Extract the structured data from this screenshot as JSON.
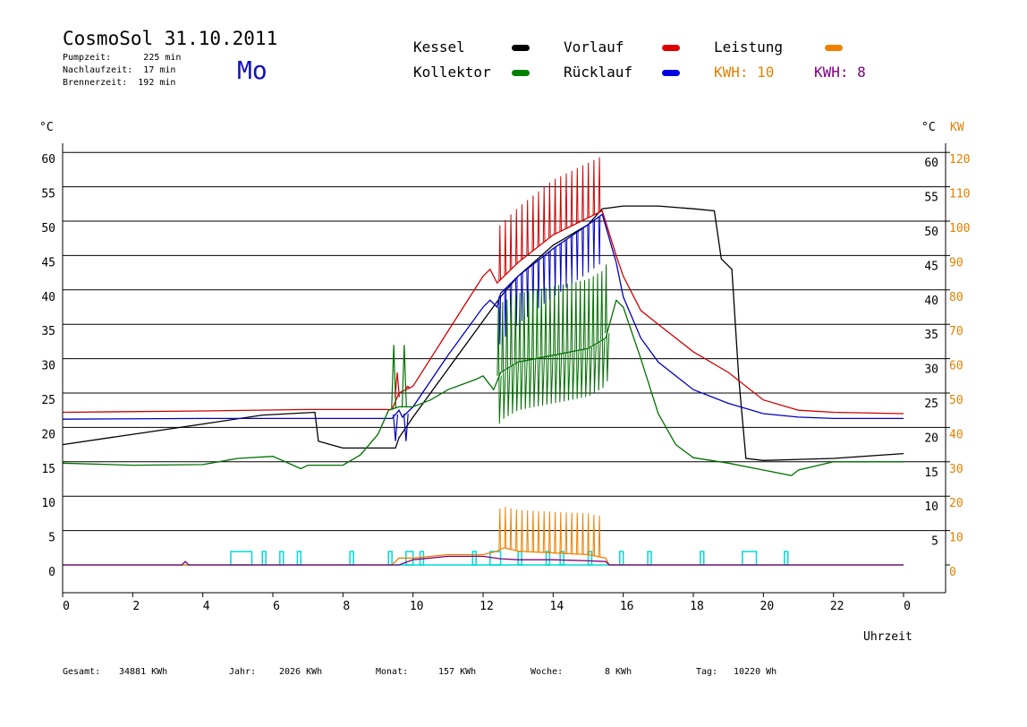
{
  "header": {
    "title": "CosmoSol 31.10.2011",
    "info_lines": [
      "Pumpzeit:      225 min",
      "Nachlaufzeit:  17 min",
      "Brennerzeit:  192 min"
    ],
    "weekday": "Mo"
  },
  "legend": {
    "items": [
      {
        "label": "Kessel",
        "color": "#000000"
      },
      {
        "label": "Vorlauf",
        "color": "#e00000"
      },
      {
        "label": "Leistung",
        "color": "#f08000"
      },
      {
        "label": "Kollektor",
        "color": "#008000"
      },
      {
        "label": "Rücklauf",
        "color": "#0000e0"
      }
    ],
    "kwh": [
      {
        "label": "KWH: 10",
        "color": "#e08000"
      },
      {
        "label": "KWH: 8",
        "color": "#800080"
      }
    ]
  },
  "axes": {
    "left_unit": "°C",
    "right_unit_c": "°C",
    "right_unit_kw": "KW",
    "x_title": "Uhrzeit"
  },
  "footer": {
    "items": [
      {
        "label": "Gesamt:",
        "value": "34881 KWh"
      },
      {
        "label": "Jahr:",
        "value": "2026 KWh"
      },
      {
        "label": "Monat:",
        "value": "157 KWh"
      },
      {
        "label": "Woche:",
        "value": "8 KWh"
      },
      {
        "label": "Tag:",
        "value": "10220 Wh"
      }
    ]
  },
  "colors": {
    "kessel": "#000000",
    "vorlauf": "#d00000",
    "ruecklauf": "#0000c0",
    "kollektor": "#007000",
    "leistung": "#f08000",
    "kwh2": "#800080",
    "pump": "#00d8d8",
    "kw_axis": "#e08000"
  },
  "chart_data": {
    "type": "line",
    "x_ticks": [
      "0",
      "2",
      "4",
      "6",
      "8",
      "10",
      "12",
      "14",
      "16",
      "18",
      "20",
      "22",
      "0"
    ],
    "xlim": [
      0,
      24
    ],
    "y_left_ticks": [
      0,
      5,
      10,
      15,
      20,
      25,
      30,
      35,
      40,
      45,
      50,
      55,
      60
    ],
    "y_right_ticks_c": [
      5,
      10,
      15,
      20,
      25,
      30,
      35,
      40,
      45,
      50,
      55,
      60
    ],
    "y_right_ticks_kw": [
      0,
      10,
      20,
      30,
      40,
      50,
      60,
      70,
      80,
      90,
      100,
      110,
      120
    ],
    "ylim": [
      -4,
      64
    ],
    "ylim_kw": [
      0,
      120
    ],
    "grid": "horizontal",
    "series": [
      {
        "name": "Kessel",
        "key": "kessel",
        "x": [
          0,
          2,
          4,
          5.7,
          7.2,
          7.3,
          8.0,
          9.5,
          9.6,
          10.0,
          11.0,
          12.0,
          12.5,
          13.0,
          14.0,
          15.0,
          15.4,
          16.0,
          17.0,
          18.0,
          18.6,
          18.8,
          19.1,
          19.3,
          19.5,
          20.0,
          22.0,
          24.0
        ],
        "y": [
          17.5,
          19.0,
          20.5,
          21.8,
          22.2,
          18.0,
          17.0,
          17.0,
          18.5,
          21.5,
          28.5,
          35.5,
          39.0,
          42.0,
          46.5,
          49.5,
          51.8,
          52.2,
          52.2,
          51.8,
          51.5,
          44.5,
          43.0,
          27.0,
          15.5,
          15.2,
          15.5,
          16.2
        ]
      },
      {
        "name": "Vorlauf",
        "key": "vorlauf",
        "x": [
          0,
          4,
          7,
          9.4,
          9.6,
          10.0,
          11.0,
          12.0,
          12.2,
          12.4,
          13.0,
          14.0,
          15.0,
          15.4,
          15.8,
          16.0,
          16.5,
          17.0,
          18.0,
          19.0,
          20.0,
          21.0,
          22.0,
          24.0
        ],
        "y": [
          22.2,
          22.4,
          22.6,
          22.6,
          25.0,
          26.0,
          34.0,
          42.0,
          43.0,
          41.0,
          44.0,
          48.0,
          50.5,
          51.5,
          45.0,
          42.0,
          37.0,
          35.0,
          31.0,
          28.0,
          24.0,
          22.5,
          22.2,
          22.0
        ]
      },
      {
        "name": "Rücklauf",
        "key": "ruecklauf",
        "x": [
          0,
          4,
          7,
          9.4,
          9.6,
          9.7,
          10.0,
          11.0,
          12.0,
          12.2,
          12.4,
          12.5,
          13.0,
          14.0,
          15.0,
          15.4,
          15.8,
          16.0,
          16.5,
          17.0,
          18.0,
          19.0,
          20.0,
          21.0,
          22.0,
          24.0
        ],
        "y": [
          21.2,
          21.3,
          21.3,
          21.3,
          22.5,
          21.5,
          23.0,
          30.5,
          37.5,
          38.5,
          37.5,
          39.5,
          42.0,
          46.0,
          49.5,
          51.0,
          44.0,
          39.0,
          33.0,
          29.5,
          25.5,
          23.5,
          22.0,
          21.5,
          21.3,
          21.3
        ]
      },
      {
        "name": "Kollektor",
        "key": "kollektor",
        "x": [
          0,
          2,
          4,
          5.0,
          6.0,
          6.8,
          7.0,
          8.0,
          8.5,
          9.0,
          9.3,
          9.6,
          10.0,
          10.5,
          11.0,
          11.8,
          12.0,
          12.3,
          12.5,
          13.0,
          14.0,
          15.0,
          15.5,
          15.8,
          16.0,
          16.5,
          17.0,
          17.5,
          18.0,
          19.0,
          20.0,
          20.8,
          21.0,
          22.0,
          24.0
        ],
        "y": [
          14.8,
          14.5,
          14.6,
          15.5,
          15.8,
          14.0,
          14.5,
          14.5,
          16.0,
          19.0,
          22.5,
          23.0,
          23.0,
          24.0,
          25.5,
          27.0,
          27.5,
          25.5,
          28.0,
          29.5,
          30.5,
          31.5,
          33.0,
          38.5,
          37.5,
          30.0,
          22.0,
          17.5,
          15.6,
          14.8,
          13.8,
          13.0,
          13.8,
          15.0,
          15.0
        ]
      },
      {
        "name": "Leistung",
        "key": "leistung",
        "x": [
          0,
          9.4,
          9.6,
          10.0,
          11.0,
          12.0,
          12.4,
          12.6,
          13.0,
          14.0,
          15.0,
          15.5,
          15.6,
          24.0
        ],
        "y_kw": [
          0,
          0,
          2,
          2,
          3,
          3,
          4,
          5,
          4,
          3.5,
          3,
          2,
          0,
          0
        ]
      },
      {
        "name": "KWH: 8",
        "key": "kwh2",
        "x": [
          0,
          3.4,
          3.5,
          3.6,
          9.6,
          10.0,
          11.0,
          12.0,
          12.5,
          13.0,
          14.0,
          15.0,
          15.5,
          15.6,
          24.0
        ],
        "y_kw": [
          0,
          0,
          1,
          0,
          0,
          1.5,
          2.5,
          2.5,
          1.8,
          1.5,
          1.5,
          1.2,
          1.0,
          0,
          0
        ]
      }
    ],
    "oscillations": [
      {
        "key": "vorlauf",
        "x_from": 12.4,
        "x_to": 15.4,
        "count": 19,
        "amp": [
          6,
          8
        ]
      },
      {
        "key": "ruecklauf",
        "x_from": 12.4,
        "x_to": 15.4,
        "count": 19,
        "amp": [
          -7,
          -4
        ]
      },
      {
        "key": "kollektor",
        "x_from": 12.4,
        "x_to": 15.6,
        "count": 26,
        "amp": [
          -7,
          10
        ]
      },
      {
        "key": "leistung",
        "x_from": 12.4,
        "x_to": 15.4,
        "count": 19,
        "amp": [
          0,
          12
        ]
      }
    ],
    "pump_on_intervals": [
      [
        4.8,
        5.4
      ],
      [
        5.7,
        5.8
      ],
      [
        6.2,
        6.3
      ],
      [
        6.7,
        6.8
      ],
      [
        8.2,
        8.3
      ],
      [
        9.3,
        9.4
      ],
      [
        9.8,
        10.0
      ],
      [
        10.2,
        10.3
      ],
      [
        11.7,
        11.8
      ],
      [
        12.2,
        12.5
      ],
      [
        13.0,
        13.1
      ],
      [
        13.8,
        13.9
      ],
      [
        14.2,
        14.3
      ],
      [
        15.0,
        15.1
      ],
      [
        15.9,
        16.0
      ],
      [
        16.7,
        16.8
      ],
      [
        18.2,
        18.3
      ],
      [
        19.4,
        19.8
      ],
      [
        20.6,
        20.7
      ]
    ],
    "spikes_morning": [
      {
        "key": "kollektor",
        "x": 9.45,
        "y": 32
      },
      {
        "key": "kollektor",
        "x": 9.75,
        "y": 32
      },
      {
        "key": "ruecklauf",
        "x": 9.5,
        "y": 18
      },
      {
        "key": "ruecklauf",
        "x": 9.8,
        "y": 18
      },
      {
        "key": "vorlauf",
        "x": 9.55,
        "y": 28
      },
      {
        "key": "vorlauf",
        "x": 9.85,
        "y": 26
      }
    ]
  }
}
